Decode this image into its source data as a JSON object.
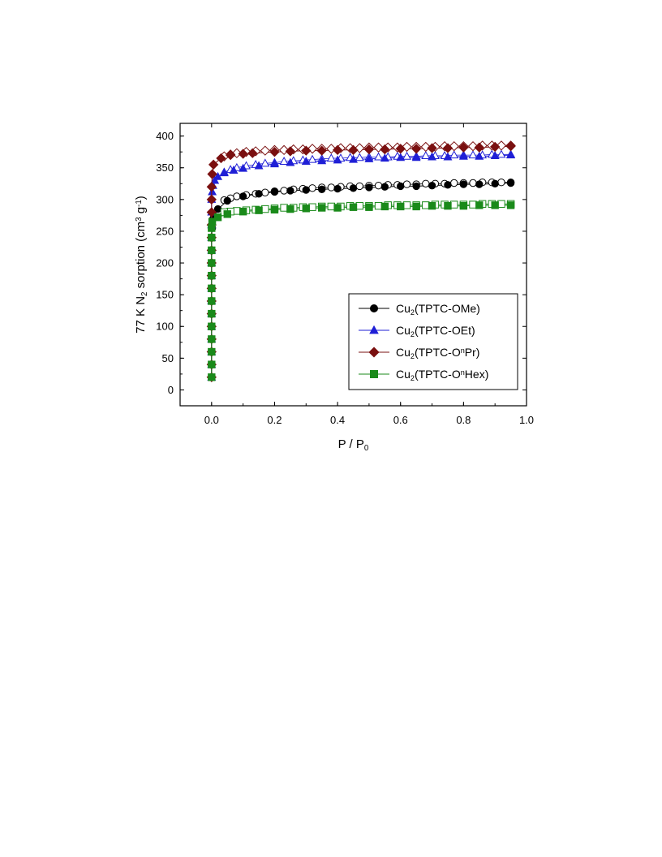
{
  "chart_data": {
    "type": "scatter",
    "xlabel": {
      "base": "P / P",
      "sub": "0"
    },
    "ylabel": {
      "parts": [
        {
          "t": "77 K N"
        },
        {
          "t": "2",
          "sub": true
        },
        {
          "t": " sorption (cm"
        },
        {
          "t": "3",
          "sup": true
        },
        {
          "t": " g"
        },
        {
          "t": "-1",
          "sup": true
        },
        {
          "t": ")"
        }
      ]
    },
    "xlim": [
      -0.1,
      1.0
    ],
    "ylim": [
      -25,
      420
    ],
    "xticks": [
      0.0,
      0.2,
      0.4,
      0.6,
      0.8,
      1.0
    ],
    "xtick_labels": [
      "0.0",
      "0.2",
      "0.4",
      "0.6",
      "0.8",
      "1.0"
    ],
    "yticks": [
      0,
      50,
      100,
      150,
      200,
      250,
      300,
      350,
      400
    ],
    "ytick_labels": [
      "0",
      "50",
      "100",
      "150",
      "200",
      "250",
      "300",
      "350",
      "400"
    ],
    "grid": false,
    "legend_position": "bottom-right",
    "series": [
      {
        "legend": [
          {
            "t": "Cu"
          },
          {
            "t": "2",
            "sub": true
          },
          {
            "t": "(TPTC-OMe)"
          }
        ],
        "color": "#000000",
        "marker": "circle",
        "adsorption": {
          "x": [
            0.0,
            0.0,
            0.0,
            0.0,
            0.0,
            0.0,
            0.0,
            0.0,
            0.0,
            0.0,
            0.0,
            0.0,
            0.002,
            0.005,
            0.02,
            0.05,
            0.1,
            0.15,
            0.2,
            0.25,
            0.3,
            0.35,
            0.4,
            0.45,
            0.5,
            0.55,
            0.6,
            0.65,
            0.7,
            0.75,
            0.8,
            0.85,
            0.9,
            0.95
          ],
          "y": [
            20,
            40,
            60,
            80,
            100,
            120,
            140,
            160,
            180,
            200,
            220,
            240,
            255,
            270,
            285,
            298,
            305,
            309,
            312,
            314,
            315,
            316,
            317,
            318,
            319,
            320,
            321,
            321,
            322,
            323,
            324,
            324,
            325,
            326
          ]
        },
        "desorption": {
          "x": [
            0.95,
            0.92,
            0.89,
            0.86,
            0.83,
            0.8,
            0.77,
            0.74,
            0.71,
            0.68,
            0.65,
            0.62,
            0.59,
            0.56,
            0.53,
            0.5,
            0.47,
            0.44,
            0.41,
            0.38,
            0.35,
            0.32,
            0.29,
            0.26,
            0.23,
            0.2,
            0.17,
            0.14,
            0.11,
            0.08,
            0.06,
            0.04
          ],
          "y": [
            327,
            327,
            327,
            327,
            326,
            326,
            326,
            325,
            325,
            325,
            324,
            324,
            323,
            323,
            322,
            322,
            321,
            321,
            320,
            319,
            319,
            318,
            317,
            316,
            314,
            313,
            311,
            309,
            307,
            305,
            302,
            299
          ]
        }
      },
      {
        "legend": [
          {
            "t": "Cu"
          },
          {
            "t": "2",
            "sub": true
          },
          {
            "t": "(TPTC-OEt)"
          }
        ],
        "color": "#1f1fd6",
        "marker": "triangle",
        "adsorption": {
          "x": [
            0.0,
            0.0,
            0.0,
            0.0,
            0.0,
            0.0,
            0.0,
            0.0,
            0.0,
            0.0,
            0.0,
            0.0,
            0.0,
            0.0,
            0.0,
            0.002,
            0.004,
            0.01,
            0.02,
            0.04,
            0.07,
            0.1,
            0.15,
            0.2,
            0.25,
            0.3,
            0.35,
            0.4,
            0.45,
            0.5,
            0.55,
            0.6,
            0.65,
            0.7,
            0.75,
            0.8,
            0.85,
            0.9,
            0.95
          ],
          "y": [
            20,
            40,
            60,
            80,
            100,
            120,
            140,
            160,
            180,
            200,
            220,
            240,
            260,
            280,
            300,
            312,
            322,
            330,
            336,
            342,
            346,
            349,
            353,
            356,
            358,
            360,
            361,
            362,
            363,
            364,
            365,
            366,
            366,
            367,
            367,
            368,
            368,
            369,
            370
          ]
        },
        "desorption": {
          "x": [
            0.95,
            0.92,
            0.89,
            0.86,
            0.83,
            0.8,
            0.77,
            0.74,
            0.71,
            0.68,
            0.65,
            0.62,
            0.59,
            0.56,
            0.53,
            0.5,
            0.47,
            0.44,
            0.41,
            0.38,
            0.35,
            0.32,
            0.29,
            0.26,
            0.23,
            0.2,
            0.17,
            0.14,
            0.11,
            0.08,
            0.06,
            0.04
          ],
          "y": [
            371,
            371,
            371,
            370,
            370,
            370,
            370,
            369,
            369,
            369,
            368,
            368,
            368,
            367,
            367,
            367,
            366,
            366,
            365,
            365,
            364,
            363,
            362,
            361,
            360,
            358,
            357,
            355,
            353,
            350,
            347,
            343
          ]
        }
      },
      {
        "legend": [
          {
            "t": "Cu"
          },
          {
            "t": "2",
            "sub": true
          },
          {
            "t": "(TPTC-O"
          },
          {
            "t": "n",
            "sup": true
          },
          {
            "t": "Pr)"
          }
        ],
        "color": "#7a1010",
        "marker": "diamond",
        "adsorption": {
          "x": [
            0.0,
            0.0,
            0.0,
            0.0,
            0.0,
            0.0,
            0.0,
            0.0,
            0.0,
            0.0,
            0.0,
            0.0,
            0.0,
            0.0,
            0.0,
            0.0,
            0.002,
            0.006,
            0.03,
            0.06,
            0.1,
            0.13,
            0.2,
            0.25,
            0.3,
            0.35,
            0.4,
            0.45,
            0.5,
            0.55,
            0.6,
            0.65,
            0.7,
            0.75,
            0.8,
            0.85,
            0.9,
            0.95
          ],
          "y": [
            20,
            40,
            60,
            80,
            100,
            120,
            140,
            160,
            180,
            200,
            220,
            240,
            260,
            280,
            300,
            320,
            340,
            355,
            365,
            370,
            372,
            373,
            375,
            376,
            377,
            377,
            378,
            378,
            379,
            379,
            380,
            380,
            381,
            381,
            382,
            382,
            383,
            384
          ]
        },
        "desorption": {
          "x": [
            0.95,
            0.92,
            0.89,
            0.86,
            0.83,
            0.8,
            0.77,
            0.74,
            0.71,
            0.68,
            0.65,
            0.62,
            0.59,
            0.56,
            0.53,
            0.5,
            0.47,
            0.44,
            0.41,
            0.38,
            0.35,
            0.32,
            0.29,
            0.26,
            0.23,
            0.2,
            0.17,
            0.14,
            0.11,
            0.08,
            0.06,
            0.04
          ],
          "y": [
            385,
            385,
            385,
            385,
            384,
            384,
            384,
            384,
            383,
            383,
            383,
            383,
            382,
            382,
            382,
            382,
            381,
            381,
            381,
            380,
            380,
            380,
            379,
            379,
            378,
            378,
            377,
            376,
            375,
            373,
            371,
            368
          ]
        }
      },
      {
        "legend": [
          {
            "t": "Cu"
          },
          {
            "t": "2",
            "sub": true
          },
          {
            "t": "(TPTC-O"
          },
          {
            "t": "n",
            "sup": true
          },
          {
            "t": "Hex)"
          }
        ],
        "color": "#1a8a1a",
        "marker": "square",
        "adsorption": {
          "x": [
            0.0,
            0.0,
            0.0,
            0.0,
            0.0,
            0.0,
            0.0,
            0.0,
            0.0,
            0.0,
            0.0,
            0.0,
            0.0,
            0.002,
            0.02,
            0.05,
            0.1,
            0.15,
            0.2,
            0.25,
            0.3,
            0.35,
            0.4,
            0.45,
            0.5,
            0.55,
            0.6,
            0.65,
            0.7,
            0.75,
            0.8,
            0.85,
            0.9,
            0.95
          ],
          "y": [
            20,
            40,
            60,
            80,
            100,
            120,
            140,
            160,
            180,
            200,
            220,
            240,
            255,
            265,
            272,
            277,
            281,
            283,
            284,
            285,
            286,
            287,
            287,
            288,
            288,
            289,
            289,
            289,
            290,
            290,
            290,
            291,
            291,
            291
          ]
        },
        "desorption": {
          "x": [
            0.95,
            0.92,
            0.89,
            0.86,
            0.83,
            0.8,
            0.77,
            0.74,
            0.71,
            0.68,
            0.65,
            0.62,
            0.59,
            0.56,
            0.53,
            0.5,
            0.47,
            0.44,
            0.41,
            0.38,
            0.35,
            0.32,
            0.29,
            0.26,
            0.23,
            0.2,
            0.17,
            0.14,
            0.11,
            0.08,
            0.06,
            0.04
          ],
          "y": [
            293,
            293,
            293,
            293,
            292,
            292,
            292,
            292,
            292,
            291,
            291,
            291,
            291,
            291,
            290,
            290,
            290,
            290,
            289,
            289,
            289,
            288,
            288,
            287,
            287,
            286,
            285,
            284,
            283,
            282,
            281,
            280
          ]
        }
      }
    ]
  }
}
